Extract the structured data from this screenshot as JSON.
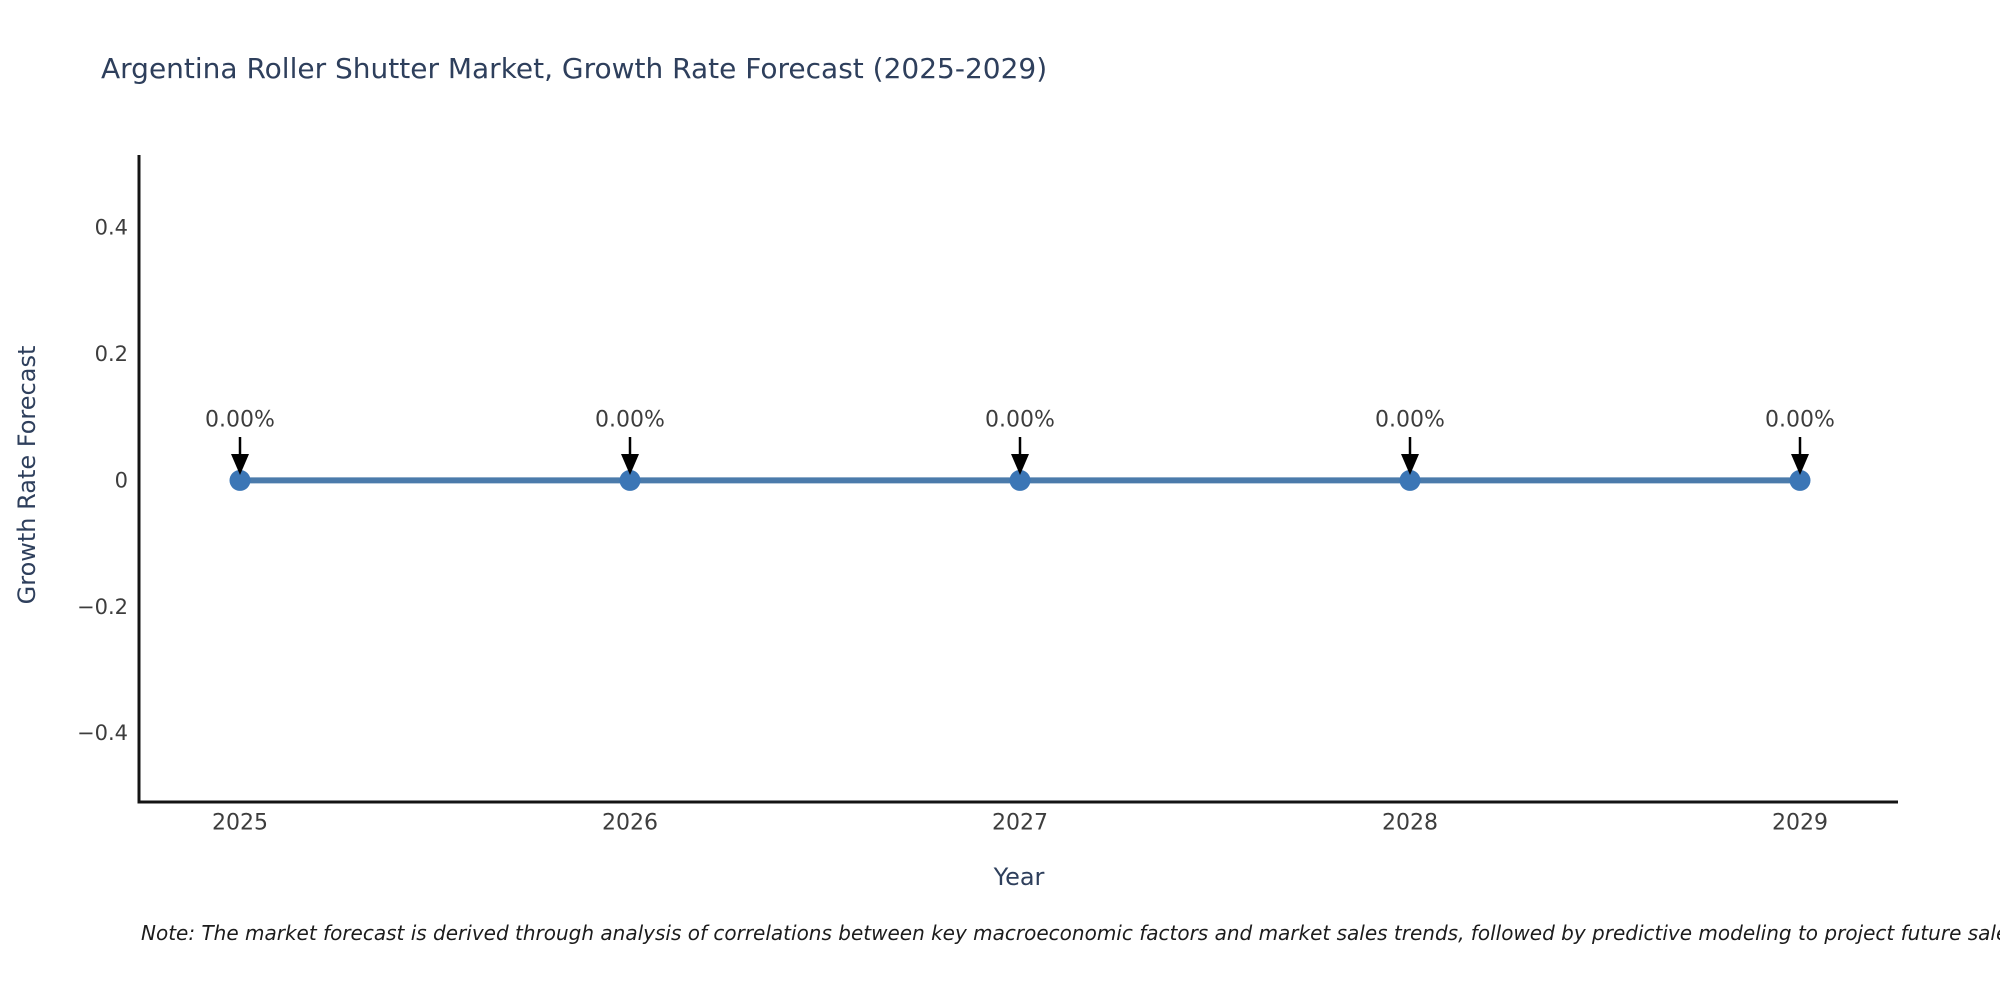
{
  "title": "Argentina Roller Shutter Market, Growth Rate Forecast (2025-2029)",
  "note": "Note: The market forecast is derived through analysis of correlations between key macroeconomic factors and market sales trends, followed by predictive modeling to project future sales",
  "chart_data": {
    "type": "line",
    "title": "Argentina Roller Shutter Market, Growth Rate Forecast (2025-2029)",
    "xlabel": "Year",
    "ylabel": "Growth Rate Forecast",
    "categories": [
      "2025",
      "2026",
      "2027",
      "2028",
      "2029"
    ],
    "series": [
      {
        "name": "Growth Rate Forecast",
        "values": [
          0,
          0,
          0,
          0,
          0
        ],
        "point_labels": [
          "0.00%",
          "0.00%",
          "0.00%",
          "0.00%",
          "0.00%"
        ]
      }
    ],
    "ylim": [
      -0.509,
      0.515
    ],
    "yticks": [
      {
        "value": -0.4,
        "label": "−0.4"
      },
      {
        "value": -0.2,
        "label": "−0.2"
      },
      {
        "value": 0,
        "label": "0"
      },
      {
        "value": 0.2,
        "label": "0.2"
      },
      {
        "value": 0.4,
        "label": "0.4"
      }
    ],
    "grid": false,
    "legend": null,
    "annotation_style": "down-arrow",
    "colors": {
      "line": "#4b7bab",
      "marker": "#3b76b6",
      "axis": "#141414",
      "tick_text": "#3d3d3d",
      "title_text": "#2e3f5c",
      "annotation_text": "#3d3d3d",
      "arrow": "#000000",
      "background": "#ffffff"
    }
  }
}
